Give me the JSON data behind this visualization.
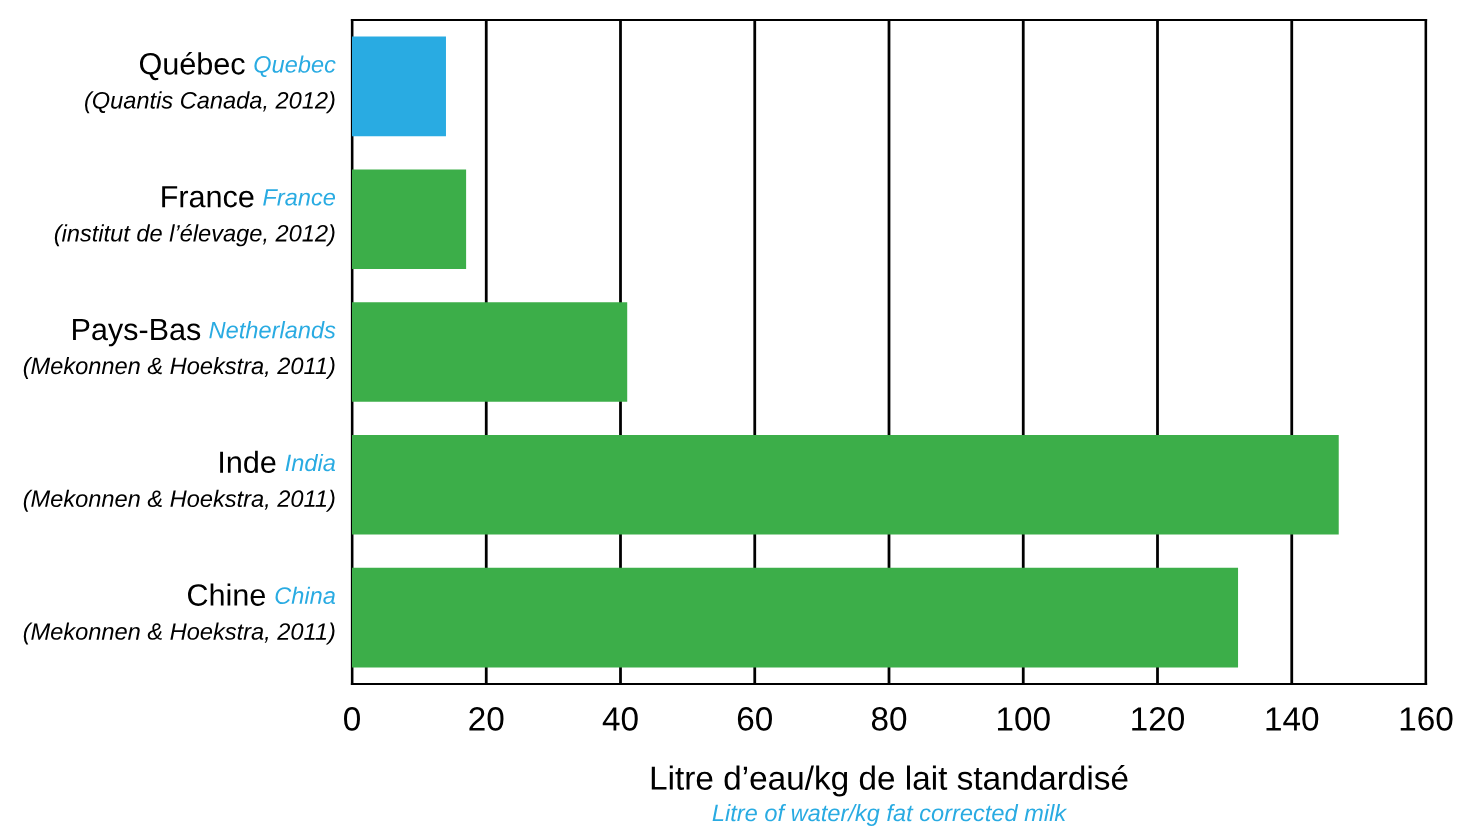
{
  "chart_data": {
    "type": "bar",
    "orientation": "horizontal",
    "categories": [
      "Québec Quebec\n(Quantis Canada, 2012)",
      "France France\n(institut de l’élevage, 2012)",
      "Pays-Bas Netherlands\n(Mekonnen & Hoekstra, 2011)",
      "Inde India\n(Mekonnen & Hoekstra, 2011)",
      "Chine China\n(Mekonnen & Hoekstra, 2011)"
    ],
    "values": [
      14,
      17,
      41,
      147,
      132
    ],
    "colors": [
      "#29abe2",
      "#3cae49",
      "#3cae49",
      "#3cae49",
      "#3cae49"
    ],
    "xlim": [
      0,
      160
    ],
    "xticks": [
      0,
      20,
      40,
      60,
      80,
      100,
      120,
      140,
      160
    ],
    "xlabel": "Litre d’eau/kg de lait standardisé",
    "annotations": [
      "Litre of water/kg fat corrected milk"
    ],
    "grid": "x"
  }
}
